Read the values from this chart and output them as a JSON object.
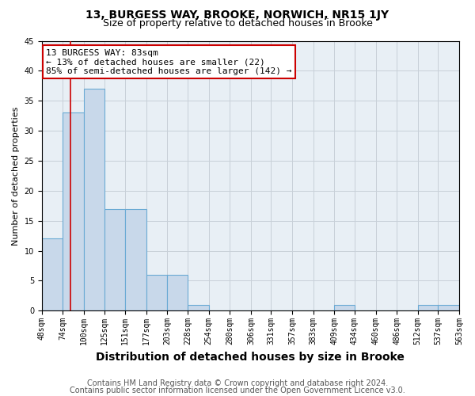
{
  "title": "13, BURGESS WAY, BROOKE, NORWICH, NR15 1JY",
  "subtitle": "Size of property relative to detached houses in Brooke",
  "xlabel": "Distribution of detached houses by size in Brooke",
  "ylabel": "Number of detached properties",
  "bin_labels": [
    "48sqm",
    "74sqm",
    "100sqm",
    "125sqm",
    "151sqm",
    "177sqm",
    "203sqm",
    "228sqm",
    "254sqm",
    "280sqm",
    "306sqm",
    "331sqm",
    "357sqm",
    "383sqm",
    "409sqm",
    "434sqm",
    "460sqm",
    "486sqm",
    "512sqm",
    "537sqm",
    "563sqm"
  ],
  "bin_edges": [
    48,
    74,
    100,
    125,
    151,
    177,
    203,
    228,
    254,
    280,
    306,
    331,
    357,
    383,
    409,
    434,
    460,
    486,
    512,
    537,
    563
  ],
  "values": [
    12,
    33,
    37,
    17,
    17,
    6,
    6,
    1,
    0,
    0,
    0,
    0,
    0,
    0,
    1,
    0,
    0,
    0,
    1,
    1,
    0
  ],
  "bar_color": "#c8d8ea",
  "bar_edge_color": "#6aaad4",
  "grid_color": "#c8d0d8",
  "bg_color": "#e8eff5",
  "property_size": 83,
  "red_line_color": "#cc0000",
  "annotation_line1": "13 BURGESS WAY: 83sqm",
  "annotation_line2": "← 13% of detached houses are smaller (22)",
  "annotation_line3": "85% of semi-detached houses are larger (142) →",
  "annotation_box_color": "#ffffff",
  "annotation_box_edge": "#cc0000",
  "ylim": [
    0,
    45
  ],
  "yticks": [
    0,
    5,
    10,
    15,
    20,
    25,
    30,
    35,
    40,
    45
  ],
  "footer1": "Contains HM Land Registry data © Crown copyright and database right 2024.",
  "footer2": "Contains public sector information licensed under the Open Government Licence v3.0.",
  "title_fontsize": 10,
  "subtitle_fontsize": 9,
  "xlabel_fontsize": 10,
  "ylabel_fontsize": 8,
  "tick_fontsize": 7,
  "annotation_fontsize": 8,
  "footer_fontsize": 7
}
